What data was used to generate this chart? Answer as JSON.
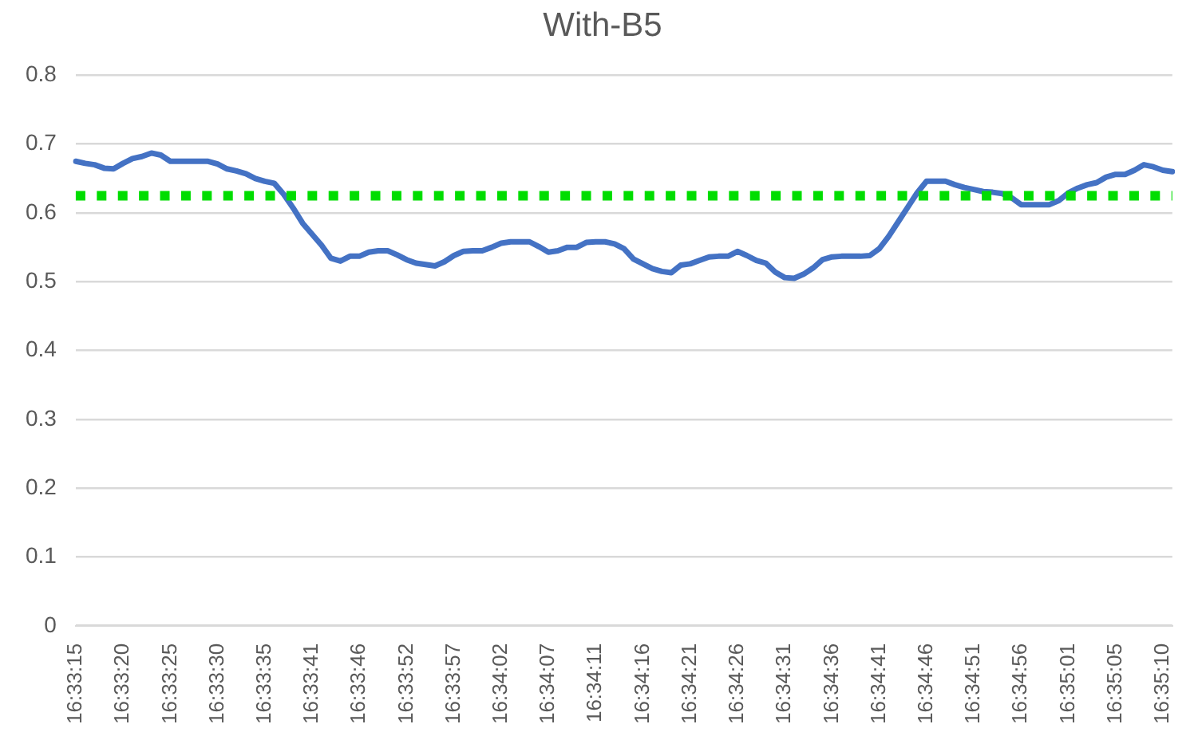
{
  "chart_data": {
    "type": "line",
    "title": "With-B5",
    "categories": [
      "16:33:15",
      null,
      null,
      null,
      null,
      "16:33:20",
      null,
      null,
      null,
      null,
      "16:33:25",
      null,
      null,
      null,
      null,
      "16:33:30",
      null,
      null,
      null,
      null,
      "16:33:35",
      null,
      null,
      null,
      null,
      "16:33:41",
      null,
      null,
      null,
      null,
      "16:33:46",
      null,
      null,
      null,
      null,
      "16:33:52",
      null,
      null,
      null,
      null,
      "16:33:57",
      null,
      null,
      null,
      null,
      "16:34:02",
      null,
      null,
      null,
      null,
      "16:34:07",
      null,
      null,
      null,
      null,
      "16:34:11",
      null,
      null,
      null,
      null,
      "16:34:16",
      null,
      null,
      null,
      null,
      "16:34:21",
      null,
      null,
      null,
      null,
      "16:34:26",
      null,
      null,
      null,
      null,
      "16:34:31",
      null,
      null,
      null,
      null,
      "16:34:36",
      null,
      null,
      null,
      null,
      "16:34:41",
      null,
      null,
      null,
      null,
      "16:34:46",
      null,
      null,
      null,
      null,
      "16:34:51",
      null,
      null,
      null,
      null,
      "16:34:56",
      null,
      null,
      null,
      null,
      "16:35:01",
      null,
      null,
      null,
      null,
      "16:35:05",
      null,
      null,
      null,
      null,
      "16:35:10",
      null
    ],
    "series": [
      {
        "color": "#4472c4",
        "values": [
          0.675,
          0.672,
          0.67,
          0.665,
          0.664,
          0.672,
          0.679,
          0.682,
          0.687,
          0.684,
          0.675,
          0.675,
          0.675,
          0.675,
          0.675,
          0.671,
          0.664,
          0.661,
          0.657,
          0.65,
          0.646,
          0.643,
          0.627,
          0.607,
          0.585,
          0.569,
          0.553,
          0.534,
          0.53,
          0.537,
          0.537,
          0.543,
          0.545,
          0.545,
          0.539,
          0.532,
          0.527,
          0.525,
          0.523,
          0.529,
          0.538,
          0.544,
          0.545,
          0.545,
          0.55,
          0.556,
          0.558,
          0.558,
          0.558,
          0.551,
          0.543,
          0.545,
          0.55,
          0.55,
          0.557,
          0.558,
          0.558,
          0.555,
          0.548,
          0.533,
          0.526,
          0.519,
          0.515,
          0.513,
          0.524,
          0.526,
          0.531,
          0.536,
          0.537,
          0.537,
          0.544,
          0.538,
          0.531,
          0.527,
          0.514,
          0.506,
          0.505,
          0.511,
          0.52,
          0.532,
          0.536,
          0.537,
          0.537,
          0.537,
          0.538,
          0.548,
          0.566,
          0.587,
          0.608,
          0.629,
          0.646,
          0.646,
          0.646,
          0.641,
          0.637,
          0.634,
          0.631,
          0.63,
          0.628,
          0.622,
          0.612,
          0.612,
          0.612,
          0.612,
          0.618,
          0.629,
          0.636,
          0.641,
          0.644,
          0.652,
          0.656,
          0.656,
          0.662,
          0.67,
          0.667,
          0.662,
          0.66
        ]
      }
    ],
    "ylim": [
      0,
      0.8
    ],
    "yticks": [
      0,
      0.1,
      0.2,
      0.3,
      0.4,
      0.5,
      0.6,
      0.7,
      0.8
    ],
    "grid": "y",
    "legend": false,
    "marker": "none",
    "line_style": "solid",
    "ref_lines": [
      {
        "axis": "y",
        "value": 0.625,
        "color": "#00dd00",
        "line_style": "dotted"
      }
    ]
  }
}
